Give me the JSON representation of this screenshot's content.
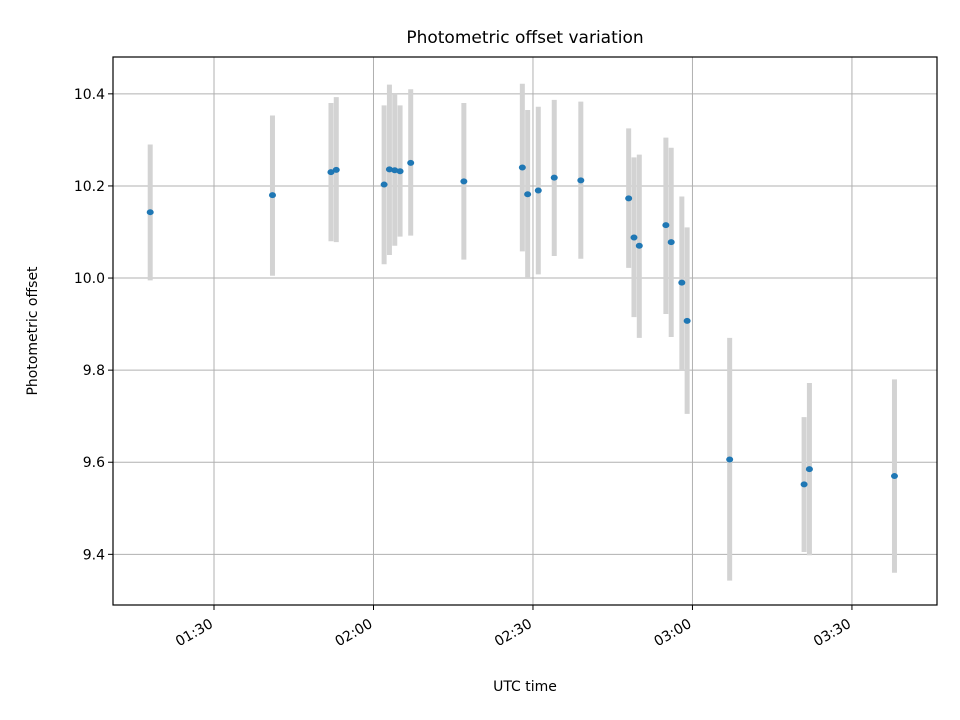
{
  "chart_data": {
    "type": "scatter",
    "title": "Photometric offset variation",
    "xlabel": "UTC time",
    "ylabel": "Photometric offset",
    "xlim": [
      "01:11",
      "03:46"
    ],
    "ylim": [
      9.29,
      10.48
    ],
    "x_ticks": [
      "01:30",
      "02:00",
      "02:30",
      "03:00",
      "03:30"
    ],
    "y_ticks": [
      9.4,
      9.6,
      9.8,
      10.0,
      10.2,
      10.4
    ],
    "grid": true,
    "marker_color": "#1f77b4",
    "errorbar_color": "#d3d3d3",
    "points": [
      {
        "t": "01:18",
        "y": 10.143,
        "lo": 9.995,
        "hi": 10.29
      },
      {
        "t": "01:41",
        "y": 10.18,
        "lo": 10.005,
        "hi": 10.353
      },
      {
        "t": "01:52",
        "y": 10.23,
        "lo": 10.08,
        "hi": 10.38
      },
      {
        "t": "01:53",
        "y": 10.235,
        "lo": 10.078,
        "hi": 10.393
      },
      {
        "t": "02:02",
        "y": 10.203,
        "lo": 10.03,
        "hi": 10.375
      },
      {
        "t": "02:03",
        "y": 10.236,
        "lo": 10.05,
        "hi": 10.42
      },
      {
        "t": "02:04",
        "y": 10.234,
        "lo": 10.07,
        "hi": 10.4
      },
      {
        "t": "02:05",
        "y": 10.232,
        "lo": 10.09,
        "hi": 10.375
      },
      {
        "t": "02:07",
        "y": 10.25,
        "lo": 10.092,
        "hi": 10.41
      },
      {
        "t": "02:17",
        "y": 10.21,
        "lo": 10.04,
        "hi": 10.38
      },
      {
        "t": "02:28",
        "y": 10.24,
        "lo": 10.058,
        "hi": 10.422
      },
      {
        "t": "02:29",
        "y": 10.182,
        "lo": 10.0,
        "hi": 10.365
      },
      {
        "t": "02:31",
        "y": 10.19,
        "lo": 10.008,
        "hi": 10.372
      },
      {
        "t": "02:34",
        "y": 10.218,
        "lo": 10.048,
        "hi": 10.387
      },
      {
        "t": "02:39",
        "y": 10.212,
        "lo": 10.042,
        "hi": 10.383
      },
      {
        "t": "02:48",
        "y": 10.173,
        "lo": 10.022,
        "hi": 10.325
      },
      {
        "t": "02:49",
        "y": 10.088,
        "lo": 9.915,
        "hi": 10.262
      },
      {
        "t": "02:50",
        "y": 10.07,
        "lo": 9.87,
        "hi": 10.268
      },
      {
        "t": "02:55",
        "y": 10.115,
        "lo": 9.922,
        "hi": 10.305
      },
      {
        "t": "02:56",
        "y": 10.078,
        "lo": 9.872,
        "hi": 10.283
      },
      {
        "t": "02:58",
        "y": 9.99,
        "lo": 9.8,
        "hi": 10.177
      },
      {
        "t": "02:59",
        "y": 9.907,
        "lo": 9.705,
        "hi": 10.11
      },
      {
        "t": "03:07",
        "y": 9.606,
        "lo": 9.343,
        "hi": 9.87
      },
      {
        "t": "03:21",
        "y": 9.552,
        "lo": 9.405,
        "hi": 9.698
      },
      {
        "t": "03:22",
        "y": 9.585,
        "lo": 9.398,
        "hi": 9.772
      },
      {
        "t": "03:38",
        "y": 9.57,
        "lo": 9.36,
        "hi": 9.78
      }
    ]
  }
}
